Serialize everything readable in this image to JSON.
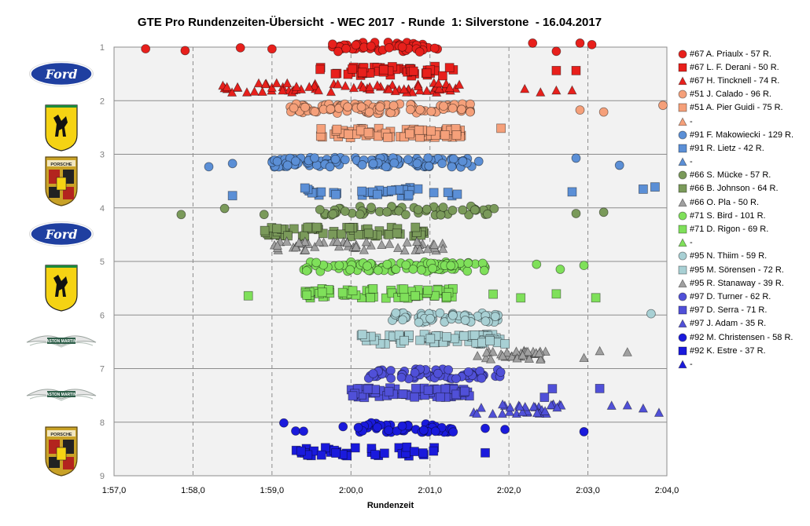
{
  "title": "GTE Pro Rundenzeiten-Übersicht  - WEC 2017  - Runde  1: Silverstone  - 16.04.2017",
  "chart_data": {
    "type": "scatter",
    "title": "GTE Pro Rundenzeiten-Übersicht  - WEC 2017  - Runde  1: Silverstone  - 16.04.2017",
    "xlabel": "Rundenzeit",
    "ylabel": "",
    "xlim": [
      117,
      124
    ],
    "ylim": [
      1,
      9
    ],
    "y_inverted": true,
    "grid": true,
    "legend_position": "right",
    "x_tick_labels": [
      "1:57,0",
      "1:58,0",
      "1:59,0",
      "2:00,0",
      "2:01,0",
      "2:02,0",
      "2:03,0",
      "2:04,0"
    ],
    "y_tick_labels": [
      "1",
      "2",
      "3",
      "4",
      "5",
      "6",
      "7",
      "8",
      "9"
    ],
    "series": [
      {
        "name": "#67 A. Priaulx - 57 R.",
        "y": 1.0,
        "marker": "circle",
        "color": "#e8201c",
        "laps": 57,
        "x_range": [
          117.4,
          123.05
        ],
        "x_dense": [
          119.6,
          121.1
        ],
        "outliers": [
          117.4,
          117.9,
          118.6,
          119.0,
          122.3,
          122.6,
          122.9,
          123.05
        ]
      },
      {
        "name": "#67 L. F. Derani - 50 R.",
        "y": 1.45,
        "marker": "square",
        "color": "#e8201c",
        "laps": 50,
        "x_range": [
          119.4,
          122.85
        ],
        "x_dense": [
          119.6,
          121.3
        ],
        "outliers": [
          122.6,
          122.85
        ]
      },
      {
        "name": "#67 H. Tincknell - 74 R.",
        "y": 1.75,
        "marker": "triangle",
        "color": "#e8201c",
        "laps": 74,
        "x_range": [
          117.8,
          122.8
        ],
        "x_dense": [
          118.3,
          121.4
        ],
        "outliers": [
          122.2,
          122.4,
          122.6,
          122.8
        ]
      },
      {
        "name": "#51 J. Calado - 96 R.",
        "y": 2.15,
        "marker": "circle",
        "color": "#f5a07a",
        "laps": 96,
        "x_range": [
          119.0,
          123.95
        ],
        "x_dense": [
          119.2,
          121.6
        ],
        "outliers": [
          122.9,
          123.2,
          123.95
        ]
      },
      {
        "name": "#51 A. Pier Guidi - 75 R.",
        "y": 2.6,
        "marker": "square",
        "color": "#f5a07a",
        "laps": 75,
        "x_range": [
          119.2,
          121.9
        ],
        "x_dense": [
          119.6,
          121.4
        ],
        "outliers": [
          121.9
        ]
      },
      {
        "name": "-",
        "y": 2.9,
        "marker": "triangle",
        "color": "#f5a07a",
        "laps": 0
      },
      {
        "name": "#91 F. Makowiecki - 129 R.",
        "y": 3.15,
        "marker": "circle",
        "color": "#5b8fd6",
        "laps": 129,
        "x_range": [
          118.2,
          123.4
        ],
        "x_dense": [
          119.0,
          121.7
        ],
        "outliers": [
          118.2,
          118.5,
          122.85,
          123.4
        ]
      },
      {
        "name": "#91 R. Lietz - 42 R.",
        "y": 3.7,
        "marker": "square",
        "color": "#5b8fd6",
        "laps": 42,
        "x_range": [
          118.5,
          123.85
        ],
        "x_dense": [
          119.4,
          121.4
        ],
        "outliers": [
          118.5,
          122.8,
          123.7,
          123.85
        ]
      },
      {
        "name": "-",
        "y": 3.95,
        "marker": "triangle",
        "color": "#5b8fd6",
        "laps": 0
      },
      {
        "name": "#66 S. Mücke - 57 R.",
        "y": 4.05,
        "marker": "circle",
        "color": "#7a9a5a",
        "laps": 57,
        "x_range": [
          117.85,
          123.2
        ],
        "x_dense": [
          119.6,
          121.9
        ],
        "outliers": [
          117.85,
          118.4,
          118.9,
          122.85,
          123.2
        ]
      },
      {
        "name": "#66 B. Johnson - 64 R.",
        "y": 4.45,
        "marker": "square",
        "color": "#7a9a5a",
        "laps": 64,
        "x_range": [
          118.6,
          121.5
        ],
        "x_dense": [
          118.9,
          121.0
        ]
      },
      {
        "name": "#66 O. Pla - 50 R.",
        "y": 4.7,
        "marker": "triangle",
        "color": "#a0a0a0",
        "laps": 50,
        "x_range": [
          118.3,
          121.5
        ],
        "x_dense": [
          119.0,
          121.2
        ]
      },
      {
        "name": "#71 S. Bird - 101 R.",
        "y": 5.1,
        "marker": "circle",
        "color": "#7fe05a",
        "laps": 101,
        "x_range": [
          119.1,
          122.95
        ],
        "x_dense": [
          119.4,
          121.7
        ],
        "outliers": [
          122.35,
          122.65,
          122.95
        ]
      },
      {
        "name": "#71 D. Rigon - 69 R.",
        "y": 5.6,
        "marker": "square",
        "color": "#7fe05a",
        "laps": 69,
        "x_range": [
          118.7,
          123.1
        ],
        "x_dense": [
          119.4,
          121.3
        ],
        "outliers": [
          118.7,
          121.8,
          122.15,
          122.6,
          123.1
        ]
      },
      {
        "name": "-",
        "y": 5.85,
        "marker": "triangle",
        "color": "#7fe05a",
        "laps": 0
      },
      {
        "name": "#95 N. Thiim - 59 R.",
        "y": 6.05,
        "marker": "circle",
        "color": "#a8d0d4",
        "laps": 59,
        "x_range": [
          119.3,
          123.8
        ],
        "x_dense": [
          120.5,
          121.9
        ],
        "outliers": [
          123.8
        ]
      },
      {
        "name": "#95 M. Sörensen - 72 R.",
        "y": 6.45,
        "marker": "square",
        "color": "#a8d0d4",
        "laps": 72,
        "x_range": [
          119.9,
          122.45
        ],
        "x_dense": [
          120.1,
          122.0
        ]
      },
      {
        "name": "#95 R. Stanaway - 39 R.",
        "y": 6.75,
        "marker": "triangle",
        "color": "#a0a0a0",
        "laps": 39,
        "x_range": [
          121.5,
          123.5
        ],
        "x_dense": [
          121.6,
          122.5
        ],
        "outliers": [
          122.95,
          123.15,
          123.5
        ]
      },
      {
        "name": "#97 D. Turner - 62 R.",
        "y": 7.1,
        "marker": "circle",
        "color": "#5050d8",
        "laps": 62,
        "x_range": [
          119.85,
          122.45
        ],
        "x_dense": [
          120.2,
          121.9
        ]
      },
      {
        "name": "#97 D. Serra - 71 R.",
        "y": 7.45,
        "marker": "square",
        "color": "#5050d8",
        "laps": 71,
        "x_range": [
          119.6,
          123.15
        ],
        "x_dense": [
          120.0,
          121.5
        ],
        "outliers": [
          122.45,
          122.55,
          123.15
        ]
      },
      {
        "name": "#97 J. Adam - 35 R.",
        "y": 7.75,
        "marker": "triangle",
        "color": "#5050d8",
        "laps": 35,
        "x_range": [
          119.45,
          123.9
        ],
        "x_dense": [
          121.5,
          122.7
        ],
        "outliers": [
          123.3,
          123.5,
          123.7,
          123.9
        ]
      },
      {
        "name": "#92 M. Christensen - 58 R.",
        "y": 8.1,
        "marker": "circle",
        "color": "#1a1adc",
        "laps": 58,
        "x_range": [
          119.15,
          122.95
        ],
        "x_dense": [
          120.0,
          121.3
        ],
        "outliers": [
          119.15,
          119.3,
          119.4,
          119.9,
          121.7,
          121.95,
          122.95
        ]
      },
      {
        "name": "#92 K. Estre - 37 R.",
        "y": 8.55,
        "marker": "square",
        "color": "#1a1adc",
        "laps": 37,
        "x_range": [
          119.1,
          121.7
        ],
        "x_dense": [
          119.2,
          121.1
        ],
        "outliers": [
          121.7
        ]
      },
      {
        "name": "-",
        "y": 8.8,
        "marker": "triangle",
        "color": "#1a1adc",
        "laps": 0
      }
    ]
  },
  "logos": [
    {
      "name": "ford-logo",
      "kind": "ford",
      "text": "Ford"
    },
    {
      "name": "ferrari-logo",
      "kind": "ferrari",
      "text": ""
    },
    {
      "name": "porsche-logo",
      "kind": "porsche",
      "text": "PORSCHE"
    },
    {
      "name": "ford-logo",
      "kind": "ford",
      "text": "Ford"
    },
    {
      "name": "ferrari-logo",
      "kind": "ferrari",
      "text": ""
    },
    {
      "name": "aston-martin-logo",
      "kind": "aston",
      "text": "ASTON MARTIN"
    },
    {
      "name": "aston-martin-logo",
      "kind": "aston",
      "text": "ASTON MARTIN"
    },
    {
      "name": "porsche-logo",
      "kind": "porsche",
      "text": "PORSCHE"
    }
  ],
  "colors": {
    "plot_background": "#f2f2f2",
    "grid": "#8c8c8c",
    "axis": "#8c8c8c"
  }
}
